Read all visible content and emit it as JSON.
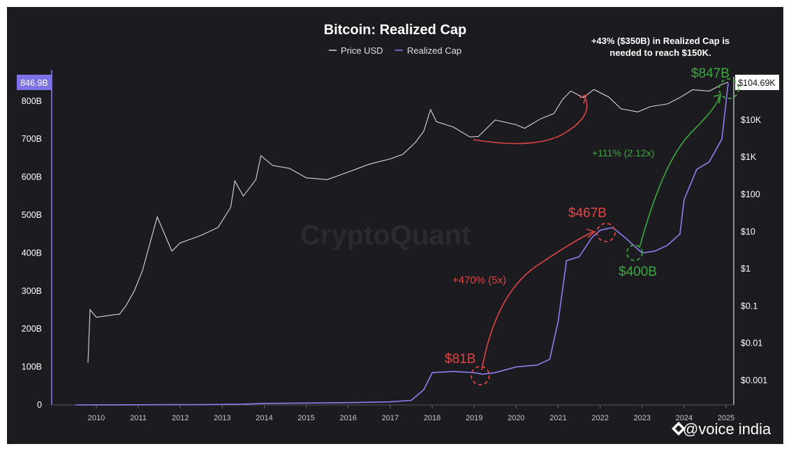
{
  "chart_data": {
    "type": "line",
    "title": "Bitcoin: Realized Cap",
    "legend": {
      "placement": "top-center",
      "entries": [
        {
          "name": "Price USD",
          "color": "#d8d8d8"
        },
        {
          "name": "Realized Cap",
          "color": "#8b7ff0"
        }
      ]
    },
    "x_ticks": [
      "2010",
      "2011",
      "2012",
      "2013",
      "2014",
      "2015",
      "2016",
      "2017",
      "2018",
      "2019",
      "2020",
      "2021",
      "2022",
      "2023",
      "2024",
      "2025"
    ],
    "left_axis": {
      "label": "",
      "ticks": [
        "0",
        "100B",
        "200B",
        "300B",
        "400B",
        "500B",
        "600B",
        "700B",
        "800B"
      ],
      "range": [
        0,
        846.9
      ],
      "current_value_label": "846.9B"
    },
    "right_axis": {
      "label": "",
      "scale": "log",
      "ticks": [
        "$0.001",
        "$0.01",
        "$0.1",
        "$1",
        "$10",
        "$100",
        "$1K",
        "$10K"
      ],
      "current_value_label": "$104.69K"
    },
    "series": [
      {
        "name": "Realized Cap",
        "axis": "left",
        "unit": "B USD",
        "x": [
          2009.5,
          2010.5,
          2011.5,
          2012.5,
          2013.5,
          2014.0,
          2015.0,
          2016.0,
          2017.0,
          2017.5,
          2017.8,
          2018.0,
          2018.5,
          2019.0,
          2019.2,
          2019.5,
          2020.0,
          2020.5,
          2020.8,
          2021.0,
          2021.2,
          2021.5,
          2021.8,
          2022.0,
          2022.3,
          2022.6,
          2022.9,
          2023.0,
          2023.3,
          2023.6,
          2023.9,
          2024.0,
          2024.3,
          2024.6,
          2024.9,
          2025.05
        ],
        "values": [
          0,
          0.1,
          0.5,
          1,
          2,
          4,
          5,
          6,
          8,
          12,
          40,
          85,
          88,
          85,
          81,
          85,
          100,
          105,
          120,
          220,
          380,
          390,
          440,
          460,
          467,
          440,
          410,
          400,
          405,
          420,
          450,
          540,
          620,
          640,
          700,
          847
        ]
      },
      {
        "name": "Price USD",
        "axis": "right",
        "unit": "USD",
        "x": [
          2009.8,
          2009.85,
          2010.0,
          2010.5,
          2010.55,
          2010.7,
          2010.9,
          2011.1,
          2011.45,
          2011.8,
          2012.0,
          2012.5,
          2012.9,
          2013.2,
          2013.3,
          2013.5,
          2013.8,
          2013.92,
          2014.2,
          2014.6,
          2015.0,
          2015.5,
          2016.0,
          2016.5,
          2017.0,
          2017.3,
          2017.6,
          2017.8,
          2017.96,
          2018.1,
          2018.5,
          2018.9,
          2019.1,
          2019.5,
          2020.0,
          2020.2,
          2020.6,
          2020.9,
          2021.1,
          2021.3,
          2021.6,
          2021.85,
          2022.2,
          2022.5,
          2022.9,
          2023.2,
          2023.6,
          2023.9,
          2024.2,
          2024.6,
          2024.9,
          2025.05
        ],
        "values": [
          0.003,
          0.08,
          0.05,
          0.06,
          0.06,
          0.1,
          0.25,
          0.9,
          25,
          3,
          5,
          8,
          13,
          45,
          230,
          90,
          250,
          1100,
          600,
          500,
          280,
          250,
          400,
          650,
          900,
          1200,
          2500,
          5000,
          19000,
          9000,
          6500,
          3500,
          3600,
          10000,
          7500,
          6000,
          11000,
          15000,
          35000,
          60000,
          40000,
          66000,
          42000,
          20000,
          16500,
          23000,
          27000,
          40000,
          65000,
          60000,
          90000,
          104690
        ]
      }
    ],
    "annotations": {
      "top_note_line1": "+43% ($350B) in Realized Cap is",
      "top_note_line2": "needed to reach $150K.",
      "label_847": "$847B",
      "label_467": "$467B",
      "label_400": "$400B",
      "label_81": "$81B",
      "pct_470": "+470% (5x)",
      "pct_111": "+111% (2.12x)"
    },
    "grid": false
  },
  "branding": {
    "watermark": "CryptoQuant",
    "handle": "@voice india"
  }
}
